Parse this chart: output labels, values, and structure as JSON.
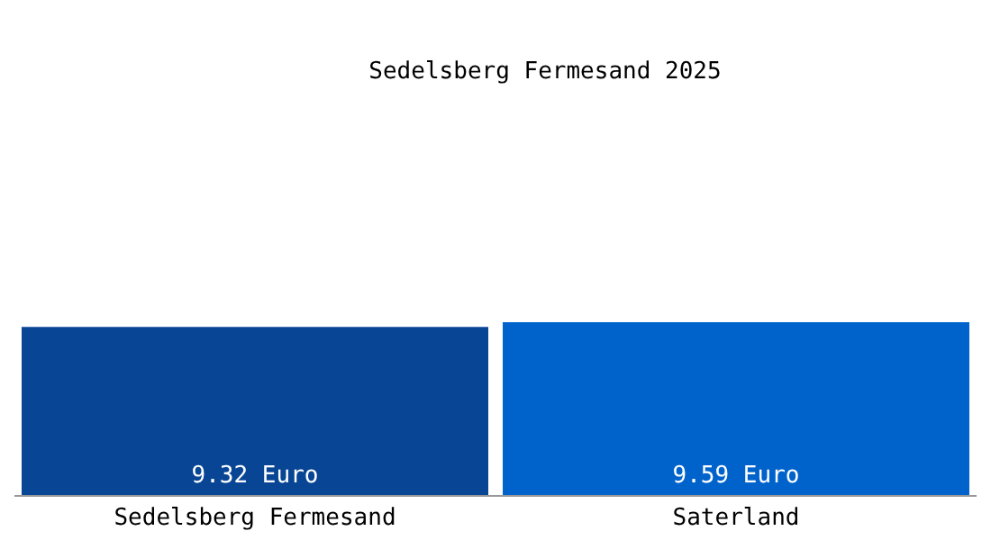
{
  "chart_data": {
    "type": "bar",
    "title": "Sedelsberg Fermesand 2025",
    "categories": [
      "Sedelsberg Fermesand",
      "Saterland"
    ],
    "values": [
      9.32,
      9.59
    ],
    "colors": [
      "#084594",
      "#0063cb"
    ],
    "value_labels": [
      "9.32 Euro",
      "9.59 Euro"
    ],
    "grid": false,
    "legend": false
  }
}
